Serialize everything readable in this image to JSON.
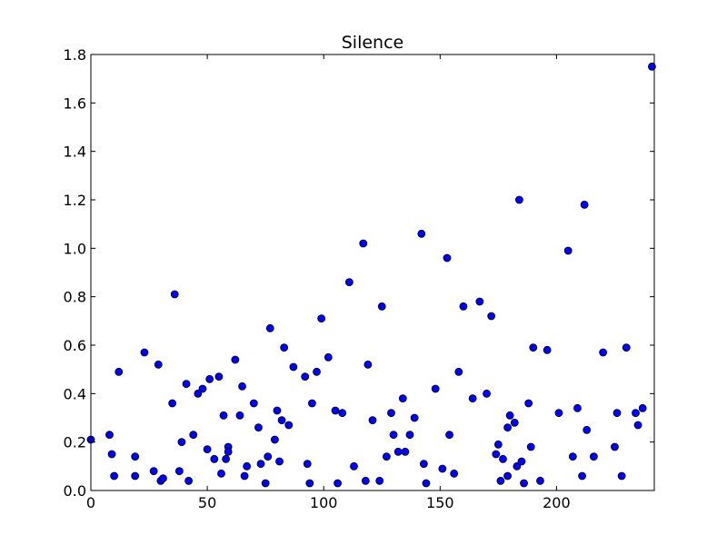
{
  "chart_data": {
    "type": "scatter",
    "title": "Silence",
    "xlabel": "",
    "ylabel": "",
    "xlim": [
      0,
      242
    ],
    "ylim": [
      0,
      1.8
    ],
    "xticks": [
      0,
      50,
      100,
      150,
      200
    ],
    "yticks": [
      0.0,
      0.2,
      0.4,
      0.6,
      0.8,
      1.0,
      1.2,
      1.4,
      1.6,
      1.8
    ],
    "xtick_labels": [
      "0",
      "50",
      "100",
      "150",
      "200"
    ],
    "ytick_labels": [
      "0.0",
      "0.2",
      "0.4",
      "0.6",
      "0.8",
      "1.0",
      "1.2",
      "1.4",
      "1.6",
      "1.8"
    ],
    "grid": false,
    "marker_color": "#0000ff",
    "points": [
      [
        0,
        0.21
      ],
      [
        8,
        0.23
      ],
      [
        9,
        0.15
      ],
      [
        10,
        0.06
      ],
      [
        12,
        0.49
      ],
      [
        19,
        0.14
      ],
      [
        19,
        0.06
      ],
      [
        23,
        0.57
      ],
      [
        27,
        0.08
      ],
      [
        29,
        0.52
      ],
      [
        30,
        0.04
      ],
      [
        31,
        0.05
      ],
      [
        35,
        0.36
      ],
      [
        36,
        0.81
      ],
      [
        38,
        0.08
      ],
      [
        39,
        0.2
      ],
      [
        41,
        0.44
      ],
      [
        42,
        0.04
      ],
      [
        44,
        0.23
      ],
      [
        46,
        0.4
      ],
      [
        48,
        0.42
      ],
      [
        50,
        0.17
      ],
      [
        51,
        0.46
      ],
      [
        53,
        0.13
      ],
      [
        55,
        0.47
      ],
      [
        56,
        0.07
      ],
      [
        57,
        0.31
      ],
      [
        58,
        0.13
      ],
      [
        59,
        0.18
      ],
      [
        59,
        0.16
      ],
      [
        62,
        0.54
      ],
      [
        64,
        0.31
      ],
      [
        65,
        0.43
      ],
      [
        66,
        0.06
      ],
      [
        67,
        0.1
      ],
      [
        70,
        0.36
      ],
      [
        72,
        0.26
      ],
      [
        73,
        0.11
      ],
      [
        75,
        0.03
      ],
      [
        76,
        0.14
      ],
      [
        77,
        0.67
      ],
      [
        79,
        0.21
      ],
      [
        80,
        0.33
      ],
      [
        81,
        0.12
      ],
      [
        82,
        0.29
      ],
      [
        83,
        0.59
      ],
      [
        85,
        0.27
      ],
      [
        87,
        0.51
      ],
      [
        92,
        0.47
      ],
      [
        93,
        0.11
      ],
      [
        94,
        0.03
      ],
      [
        95,
        0.36
      ],
      [
        97,
        0.49
      ],
      [
        99,
        0.71
      ],
      [
        102,
        0.55
      ],
      [
        105,
        0.33
      ],
      [
        106,
        0.03
      ],
      [
        108,
        0.32
      ],
      [
        111,
        0.86
      ],
      [
        113,
        0.1
      ],
      [
        117,
        1.02
      ],
      [
        118,
        0.04
      ],
      [
        119,
        0.52
      ],
      [
        121,
        0.29
      ],
      [
        124,
        0.04
      ],
      [
        125,
        0.76
      ],
      [
        127,
        0.14
      ],
      [
        129,
        0.32
      ],
      [
        130,
        0.23
      ],
      [
        132,
        0.16
      ],
      [
        134,
        0.38
      ],
      [
        135,
        0.16
      ],
      [
        137,
        0.23
      ],
      [
        139,
        0.3
      ],
      [
        142,
        1.06
      ],
      [
        143,
        0.11
      ],
      [
        144,
        0.03
      ],
      [
        148,
        0.42
      ],
      [
        151,
        0.09
      ],
      [
        153,
        0.96
      ],
      [
        154,
        0.23
      ],
      [
        156,
        0.07
      ],
      [
        158,
        0.49
      ],
      [
        160,
        0.76
      ],
      [
        164,
        0.38
      ],
      [
        167,
        0.78
      ],
      [
        170,
        0.4
      ],
      [
        172,
        0.72
      ],
      [
        174,
        0.15
      ],
      [
        175,
        0.19
      ],
      [
        176,
        0.04
      ],
      [
        177,
        0.13
      ],
      [
        179,
        0.26
      ],
      [
        179,
        0.06
      ],
      [
        180,
        0.31
      ],
      [
        182,
        0.28
      ],
      [
        183,
        0.1
      ],
      [
        184,
        1.2
      ],
      [
        185,
        0.12
      ],
      [
        186,
        0.03
      ],
      [
        188,
        0.36
      ],
      [
        189,
        0.18
      ],
      [
        190,
        0.59
      ],
      [
        193,
        0.04
      ],
      [
        196,
        0.58
      ],
      [
        201,
        0.32
      ],
      [
        205,
        0.99
      ],
      [
        207,
        0.14
      ],
      [
        209,
        0.34
      ],
      [
        211,
        0.06
      ],
      [
        212,
        1.18
      ],
      [
        213,
        0.25
      ],
      [
        216,
        0.14
      ],
      [
        220,
        0.57
      ],
      [
        225,
        0.18
      ],
      [
        226,
        0.32
      ],
      [
        228,
        0.06
      ],
      [
        230,
        0.59
      ],
      [
        234,
        0.32
      ],
      [
        235,
        0.27
      ],
      [
        237,
        0.34
      ],
      [
        241,
        1.75
      ]
    ]
  }
}
